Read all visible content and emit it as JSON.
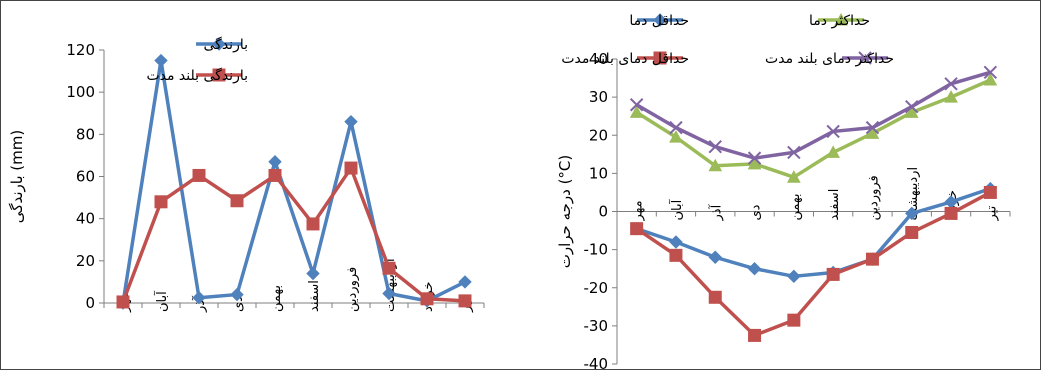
{
  "chart_data": [
    {
      "type": "line",
      "title": "",
      "xlabel": "",
      "ylabel": "بارندگی (mm)",
      "ylim": [
        0,
        120
      ],
      "yticks": [
        0,
        20,
        40,
        60,
        80,
        100,
        120
      ],
      "grid": false,
      "legend_position": "top-center",
      "categories": [
        "مهر",
        "آبان",
        "آذر",
        "دی",
        "بهمن",
        "اسفند",
        "فروردین",
        "اردیبهشت",
        "خرداد",
        "تیر"
      ],
      "series": [
        {
          "name": "بارندگی",
          "color": "#4F81BD",
          "marker": "diamond",
          "values": [
            0,
            115,
            2.5,
            4,
            67,
            14,
            86,
            4.5,
            1,
            10
          ]
        },
        {
          "name": "بارندگی بلند مدت",
          "color": "#C0504D",
          "marker": "square",
          "values": [
            0.5,
            48,
            60.5,
            48.5,
            60.5,
            37.5,
            64,
            16.5,
            2,
            1
          ]
        }
      ]
    },
    {
      "type": "line",
      "title": "",
      "xlabel": "",
      "ylabel": "درجه حرارت (°C)",
      "ylim": [
        -40,
        40
      ],
      "yticks": [
        -40,
        -30,
        -20,
        -10,
        0,
        10,
        20,
        30,
        40
      ],
      "grid": false,
      "legend_position": "top",
      "categories": [
        "مهر",
        "آبان",
        "آذر",
        "دی",
        "بهمن",
        "اسفند",
        "فروردین",
        "اردیبهشت",
        "خرداد",
        "تیر"
      ],
      "series": [
        {
          "name": "حداقل دما",
          "color": "#4F81BD",
          "marker": "diamond",
          "values": [
            -4.5,
            -8,
            -12,
            -15,
            -17,
            -16,
            -12.5,
            -0.5,
            2.5,
            6
          ]
        },
        {
          "name": "حداکثر دما",
          "color": "#9BBB59",
          "marker": "triangle",
          "values": [
            26,
            19.5,
            12,
            12.5,
            9,
            15.5,
            20.5,
            26,
            30,
            34.5
          ]
        },
        {
          "name": "حداقل دمای بلند مدت",
          "color": "#C0504D",
          "marker": "square",
          "values": [
            -4.5,
            -11.5,
            -22.5,
            -32.5,
            -28.5,
            -16.5,
            -12.5,
            -5.5,
            -0.5,
            5
          ]
        },
        {
          "name": "حداکثر دمای بلند مدت",
          "color": "#8064A2",
          "marker": "x",
          "values": [
            28,
            22,
            17,
            14,
            15.5,
            21,
            22,
            27.5,
            33.5,
            36.5
          ]
        }
      ]
    }
  ]
}
